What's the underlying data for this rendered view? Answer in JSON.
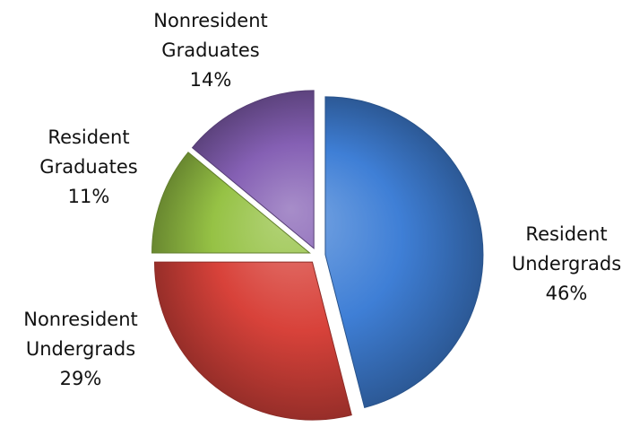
{
  "chart_data": {
    "type": "pie",
    "title": "",
    "slices": [
      {
        "name": "Resident Undergrads",
        "label_lines": [
          "Resident",
          "Undergrads"
        ],
        "value": 46,
        "value_label": "46%",
        "color": "#3f7fd6",
        "exploded": true
      },
      {
        "name": "Nonresident Undergrads",
        "label_lines": [
          "Nonresident",
          "Undergrads"
        ],
        "value": 29,
        "value_label": "29%",
        "color": "#d8423a",
        "exploded": true
      },
      {
        "name": "Resident Graduates",
        "label_lines": [
          "Resident",
          "Graduates"
        ],
        "value": 11,
        "value_label": "11%",
        "color": "#96c245",
        "exploded": true
      },
      {
        "name": "Nonresident Graduates",
        "label_lines": [
          "Nonresident",
          "Graduates"
        ],
        "value": 14,
        "value_label": "14%",
        "color": "#8560b4",
        "exploded": true
      }
    ],
    "start_angle_deg": 0,
    "direction": "clockwise",
    "legend": "none",
    "data_labels": "outside"
  }
}
